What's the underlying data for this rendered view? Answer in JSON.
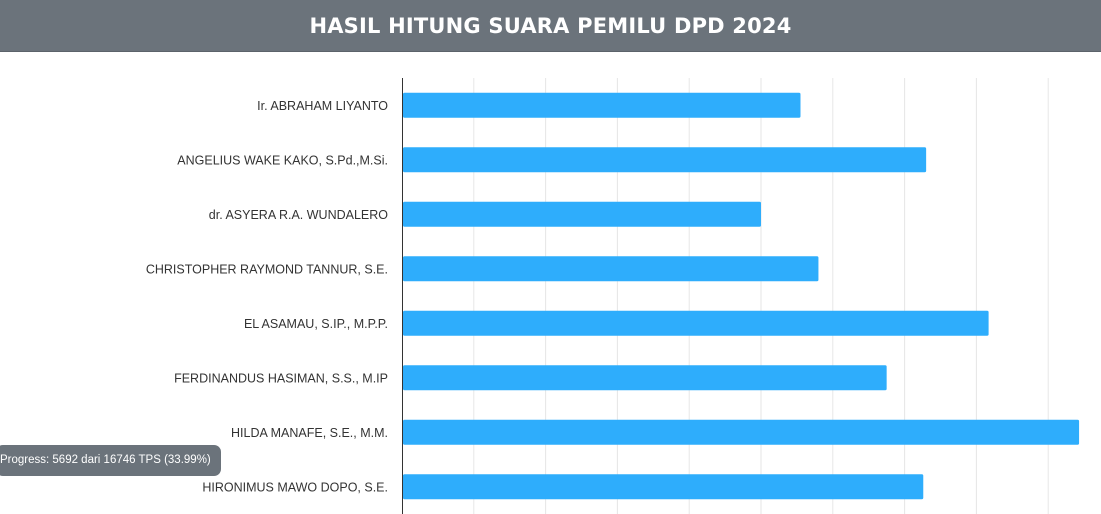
{
  "header": {
    "title": "HASIL HITUNG SUARA PEMILU DPD 2024"
  },
  "progress": {
    "text": "Progress: 5692 dari 16746 TPS (33.99%)"
  },
  "colors": {
    "header_bg": "#6b737b",
    "bar": "#2eadfc",
    "grid": "#e6e6e6",
    "axis": "#333333"
  },
  "chart_data": {
    "type": "bar",
    "orientation": "horizontal",
    "title": "",
    "xlabel": "",
    "ylabel": "",
    "categories": [
      "Ir. ABRAHAM LIYANTO",
      "ANGELIUS WAKE KAKO, S.Pd.,M.Si.",
      "dr. ASYERA R.A. WUNDALERO",
      "CHRISTOPHER RAYMOND TANNUR, S.E.",
      "EL ASAMAU, S.IP., M.P.P.",
      "FERDINANDUS HASIMAN, S.S., M.IP",
      "HILDA MANAFE, S.E., M.M.",
      "HIRONIMUS MAWO DOPO, S.E."
    ],
    "values": [
      55.5,
      73.0,
      50.0,
      58.0,
      81.7,
      67.5,
      94.3,
      72.6
    ],
    "xlim": [
      0,
      100
    ],
    "grid": true,
    "tick_labels_visible": false
  }
}
